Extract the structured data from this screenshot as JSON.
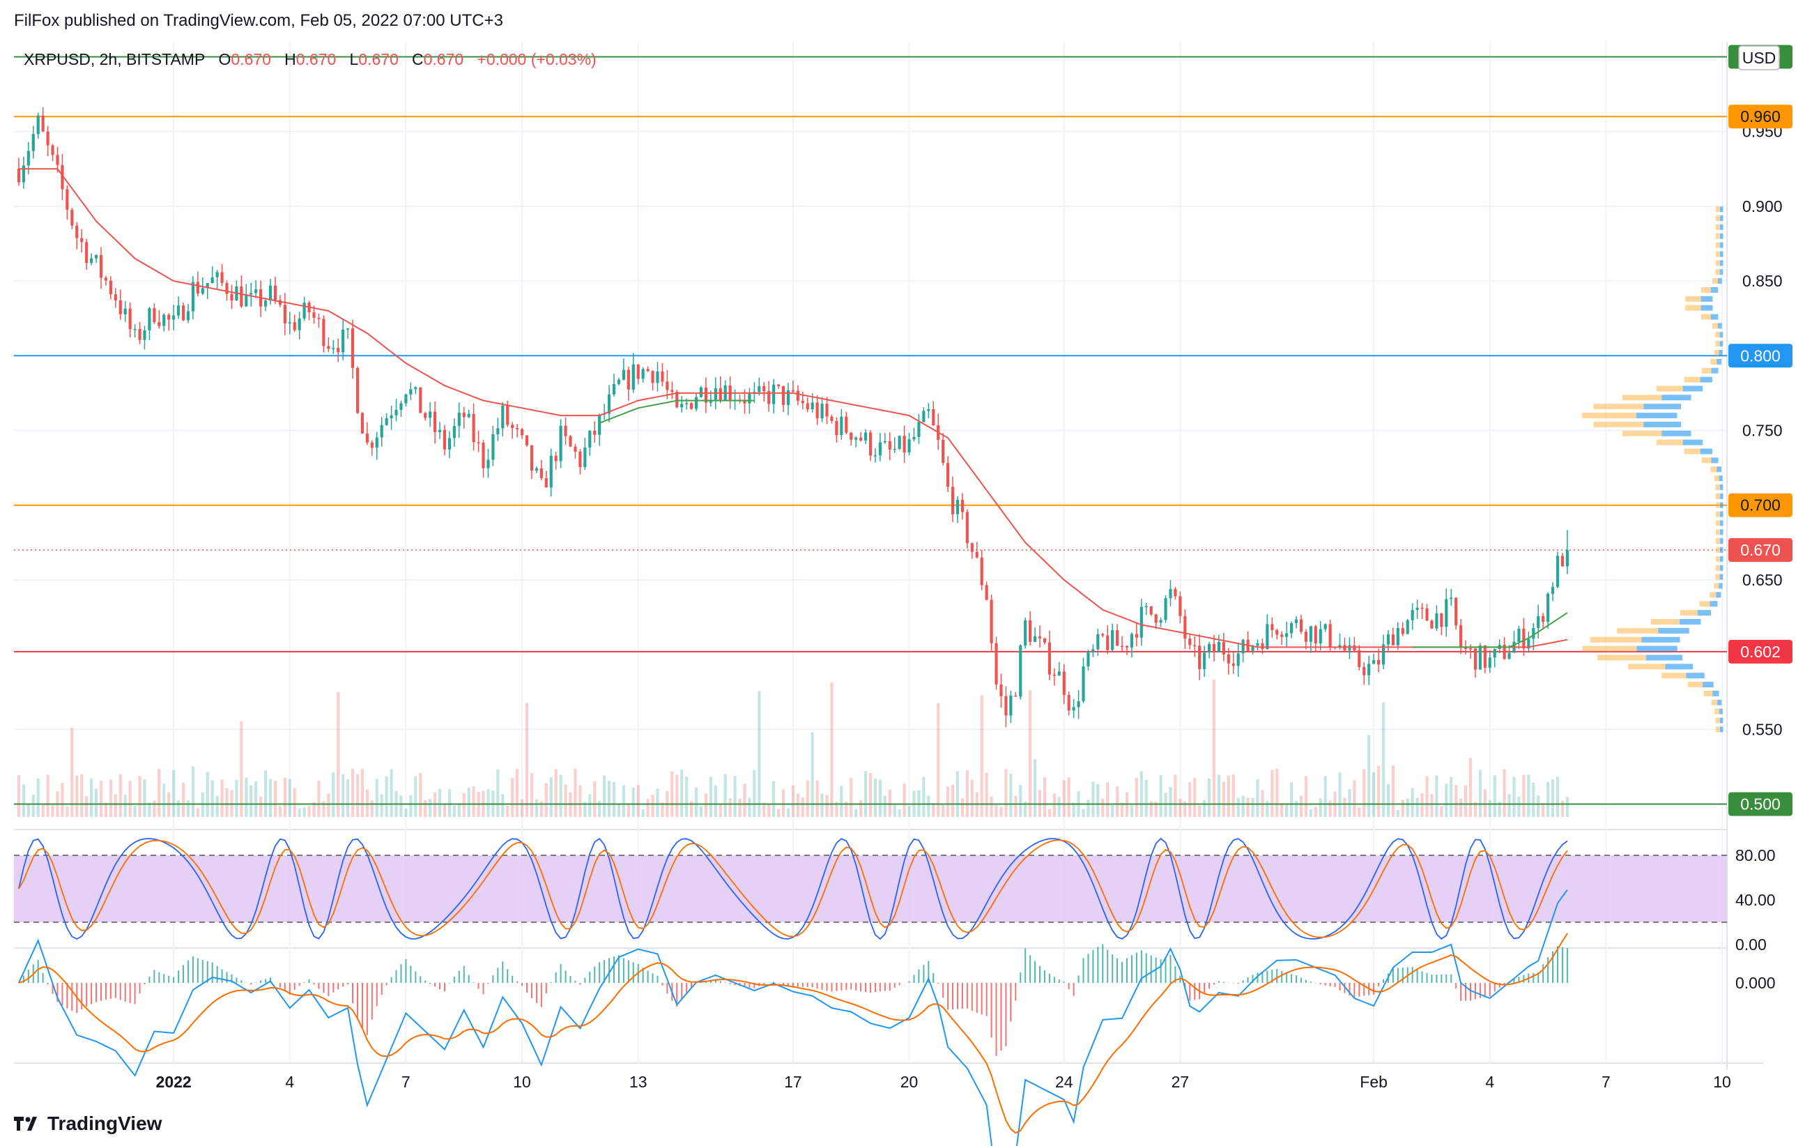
{
  "header": {
    "publisher": "FilFox published on TradingView.com, Feb 05, 2022 07:00 UTC+3"
  },
  "legend": {
    "symbol": "XRPUSD, 2h, BITSTAMP",
    "o_label": "O",
    "o": "0.670",
    "h_label": "H",
    "h": "0.670",
    "l_label": "L",
    "l": "0.670",
    "c_label": "C",
    "c": "0.670",
    "change": "+0.000 (+0.03%)"
  },
  "currency": "USD",
  "footer": {
    "brand": "TradingView"
  },
  "colors": {
    "up": "#26a69a",
    "down": "#ef5350",
    "ma": "#ef5350",
    "ma_green": "#43a047",
    "orange": "#ff9800",
    "blue": "#2196f3",
    "red": "#f23645",
    "green": "#388e3c",
    "stoch_band": "#e1c8f5",
    "stoch_k": "#2962ff",
    "stoch_d": "#ff6d00",
    "macd_line": "#2196f3",
    "signal_line": "#ff6d00"
  },
  "chart_data": {
    "type": "candlestick",
    "symbol": "XRPUSD",
    "interval": "2h",
    "exchange": "BITSTAMP",
    "ylim": [
      0.49,
      1.01
    ],
    "y_ticks": [
      "0.950",
      "0.900",
      "0.850",
      "0.750",
      "0.650",
      "0.550"
    ],
    "x_ticks": [
      {
        "label": "2022",
        "t": 16
      },
      {
        "label": "4",
        "t": 28
      },
      {
        "label": "7",
        "t": 40
      },
      {
        "label": "10",
        "t": 52
      },
      {
        "label": "13",
        "t": 64
      },
      {
        "label": "17",
        "t": 80
      },
      {
        "label": "20",
        "t": 92
      },
      {
        "label": "24",
        "t": 108
      },
      {
        "label": "27",
        "t": 120
      },
      {
        "label": "Feb",
        "t": 140
      },
      {
        "label": "4",
        "t": 152
      },
      {
        "label": "7",
        "t": 164
      },
      {
        "label": "10",
        "t": 176
      }
    ],
    "horizontal_lines": [
      {
        "value": 1.0,
        "label": "1.000",
        "color": "#388e3c"
      },
      {
        "value": 0.96,
        "label": "0.960",
        "color": "#ff9800"
      },
      {
        "value": 0.8,
        "label": "0.800",
        "color": "#2196f3"
      },
      {
        "value": 0.7,
        "label": "0.700",
        "color": "#ff9800"
      },
      {
        "value": 0.602,
        "label": "0.602",
        "color": "#f23645"
      },
      {
        "value": 0.5,
        "label": "0.500",
        "color": "#388e3c"
      }
    ],
    "last_price": {
      "value": 0.67,
      "label": "0.670"
    },
    "price_path": [
      [
        0,
        0.925
      ],
      [
        2,
        0.955
      ],
      [
        4,
        0.92
      ],
      [
        6,
        0.88
      ],
      [
        8,
        0.86
      ],
      [
        10,
        0.84
      ],
      [
        12,
        0.81
      ],
      [
        14,
        0.83
      ],
      [
        16,
        0.82
      ],
      [
        18,
        0.845
      ],
      [
        20,
        0.85
      ],
      [
        22,
        0.845
      ],
      [
        24,
        0.835
      ],
      [
        26,
        0.84
      ],
      [
        28,
        0.82
      ],
      [
        30,
        0.83
      ],
      [
        32,
        0.81
      ],
      [
        34,
        0.81
      ],
      [
        35,
        0.77
      ],
      [
        36,
        0.74
      ],
      [
        38,
        0.76
      ],
      [
        40,
        0.78
      ],
      [
        42,
        0.76
      ],
      [
        44,
        0.74
      ],
      [
        46,
        0.76
      ],
      [
        48,
        0.73
      ],
      [
        50,
        0.76
      ],
      [
        52,
        0.74
      ],
      [
        54,
        0.71
      ],
      [
        56,
        0.745
      ],
      [
        58,
        0.73
      ],
      [
        60,
        0.755
      ],
      [
        62,
        0.78
      ],
      [
        64,
        0.79
      ],
      [
        66,
        0.79
      ],
      [
        68,
        0.76
      ],
      [
        70,
        0.775
      ],
      [
        72,
        0.78
      ],
      [
        74,
        0.775
      ],
      [
        76,
        0.77
      ],
      [
        78,
        0.775
      ],
      [
        80,
        0.77
      ],
      [
        82,
        0.765
      ],
      [
        84,
        0.755
      ],
      [
        86,
        0.75
      ],
      [
        88,
        0.74
      ],
      [
        90,
        0.735
      ],
      [
        92,
        0.74
      ],
      [
        94,
        0.76
      ],
      [
        95,
        0.74
      ],
      [
        96,
        0.71
      ],
      [
        98,
        0.68
      ],
      [
        100,
        0.64
      ],
      [
        101,
        0.58
      ],
      [
        102,
        0.56
      ],
      [
        103,
        0.58
      ],
      [
        104,
        0.62
      ],
      [
        106,
        0.6
      ],
      [
        108,
        0.58
      ],
      [
        109,
        0.56
      ],
      [
        110,
        0.59
      ],
      [
        112,
        0.61
      ],
      [
        114,
        0.605
      ],
      [
        116,
        0.625
      ],
      [
        118,
        0.63
      ],
      [
        119,
        0.64
      ],
      [
        120,
        0.625
      ],
      [
        121,
        0.6
      ],
      [
        122,
        0.595
      ],
      [
        124,
        0.605
      ],
      [
        126,
        0.6
      ],
      [
        128,
        0.61
      ],
      [
        130,
        0.62
      ],
      [
        132,
        0.62
      ],
      [
        134,
        0.615
      ],
      [
        136,
        0.61
      ],
      [
        138,
        0.595
      ],
      [
        140,
        0.59
      ],
      [
        142,
        0.615
      ],
      [
        144,
        0.625
      ],
      [
        146,
        0.625
      ],
      [
        148,
        0.63
      ],
      [
        149,
        0.605
      ],
      [
        150,
        0.6
      ],
      [
        152,
        0.595
      ],
      [
        154,
        0.605
      ],
      [
        156,
        0.615
      ],
      [
        157,
        0.62
      ],
      [
        158,
        0.64
      ],
      [
        159,
        0.66
      ],
      [
        160,
        0.67
      ]
    ],
    "moving_average_path": [
      [
        0,
        0.925
      ],
      [
        4,
        0.925
      ],
      [
        8,
        0.89
      ],
      [
        12,
        0.865
      ],
      [
        16,
        0.85
      ],
      [
        20,
        0.845
      ],
      [
        24,
        0.84
      ],
      [
        28,
        0.835
      ],
      [
        32,
        0.83
      ],
      [
        36,
        0.815
      ],
      [
        40,
        0.795
      ],
      [
        44,
        0.78
      ],
      [
        48,
        0.77
      ],
      [
        52,
        0.765
      ],
      [
        56,
        0.76
      ],
      [
        60,
        0.76
      ],
      [
        64,
        0.77
      ],
      [
        68,
        0.775
      ],
      [
        72,
        0.775
      ],
      [
        76,
        0.775
      ],
      [
        80,
        0.775
      ],
      [
        84,
        0.77
      ],
      [
        88,
        0.765
      ],
      [
        92,
        0.76
      ],
      [
        96,
        0.745
      ],
      [
        100,
        0.71
      ],
      [
        104,
        0.675
      ],
      [
        108,
        0.65
      ],
      [
        112,
        0.63
      ],
      [
        116,
        0.62
      ],
      [
        120,
        0.615
      ],
      [
        124,
        0.61
      ],
      [
        128,
        0.605
      ],
      [
        132,
        0.605
      ],
      [
        136,
        0.605
      ],
      [
        140,
        0.605
      ],
      [
        144,
        0.605
      ],
      [
        148,
        0.605
      ],
      [
        152,
        0.605
      ],
      [
        156,
        0.605
      ],
      [
        160,
        0.61
      ]
    ],
    "stochastic": {
      "upper": 80,
      "lower": 20,
      "ticks": [
        "80.00",
        "40.00",
        "0.00"
      ],
      "ylim": [
        0,
        100
      ]
    },
    "macd": {
      "ticks": [
        "0.000"
      ]
    }
  }
}
